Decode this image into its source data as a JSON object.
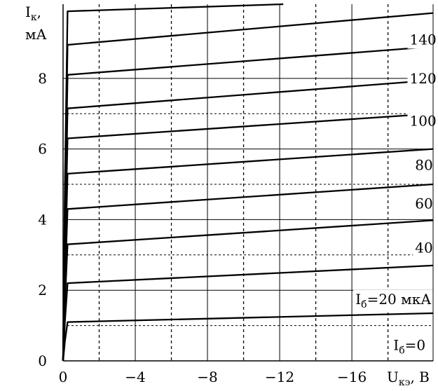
{
  "chart_data": {
    "type": "line",
    "ylabel": {
      "text": "I",
      "sub": "к",
      "tail": ",",
      "unit": "мА"
    },
    "xlabel": {
      "text": "U",
      "sub": "кэ",
      "tail": ", В"
    },
    "x_ticks": [
      {
        "value": 0,
        "label": "0"
      },
      {
        "value": -4,
        "label": "−4"
      },
      {
        "value": -8,
        "label": "−8"
      },
      {
        "value": -12,
        "label": "−12"
      },
      {
        "value": -16,
        "label": "−16"
      }
    ],
    "y_ticks": [
      {
        "value": 0,
        "label": "0"
      },
      {
        "value": 2,
        "label": "2"
      },
      {
        "value": 4,
        "label": "4"
      },
      {
        "value": 6,
        "label": "6"
      },
      {
        "value": 8,
        "label": "8"
      }
    ],
    "xlim": [
      0,
      -20.5
    ],
    "ylim": [
      0,
      10.1
    ],
    "grid": {
      "solid_y": [
        2,
        4,
        6,
        8
      ],
      "dashed_y": [
        1,
        3,
        5,
        7
      ],
      "dashed_x": [
        -2,
        -6,
        -10,
        -14,
        -18
      ]
    },
    "series": [
      {
        "x": [
          0,
          -0.1,
          -0.25,
          -20.5
        ],
        "y": [
          0,
          0.55,
          1.1,
          1.35
        ]
      },
      {
        "x": [
          0,
          -0.1,
          -0.25,
          -20.5
        ],
        "y": [
          0,
          1.1,
          2.2,
          2.7
        ]
      },
      {
        "x": [
          0,
          -0.1,
          -0.25,
          -20.5
        ],
        "y": [
          0,
          1.65,
          3.3,
          3.98
        ]
      },
      {
        "x": [
          0,
          -0.1,
          -0.25,
          -20.5
        ],
        "y": [
          0,
          2.15,
          4.3,
          5.0
        ]
      },
      {
        "x": [
          0,
          -0.1,
          -0.25,
          -20.5
        ],
        "y": [
          0,
          2.65,
          5.3,
          6.0
        ]
      },
      {
        "x": [
          0,
          -0.1,
          -0.25,
          -20.5
        ],
        "y": [
          0,
          3.15,
          6.3,
          7.0
        ]
      },
      {
        "x": [
          0,
          -0.1,
          -0.25,
          -20.5
        ],
        "y": [
          0,
          3.6,
          7.15,
          7.95
        ]
      },
      {
        "x": [
          0,
          -0.1,
          -0.25,
          -20.5
        ],
        "y": [
          0,
          4.05,
          8.1,
          8.9
        ]
      },
      {
        "x": [
          0,
          -0.1,
          -0.25,
          -20.5
        ],
        "y": [
          0,
          4.5,
          8.95,
          9.85
        ]
      },
      {
        "x": [
          0,
          -0.1,
          -0.25,
          -12.2
        ],
        "y": [
          0,
          4.95,
          9.9,
          10.1
        ]
      }
    ],
    "annotations": [
      {
        "text": "I",
        "sub": "б",
        "tail": "=0",
        "x": -18.3,
        "y": 0.45
      },
      {
        "text": "I",
        "sub": "б",
        "tail": "=20 мкА",
        "x": -16.2,
        "y": 1.75
      },
      {
        "text": "40",
        "x": -19.5,
        "y": 3.2
      },
      {
        "text": "60",
        "x": -19.5,
        "y": 4.45
      },
      {
        "text": "80",
        "x": -19.5,
        "y": 5.55
      },
      {
        "text": "100",
        "x": -19.2,
        "y": 6.8
      },
      {
        "text": "120",
        "x": -19.2,
        "y": 8.0
      },
      {
        "text": "140",
        "x": -19.2,
        "y": 9.1
      }
    ]
  }
}
